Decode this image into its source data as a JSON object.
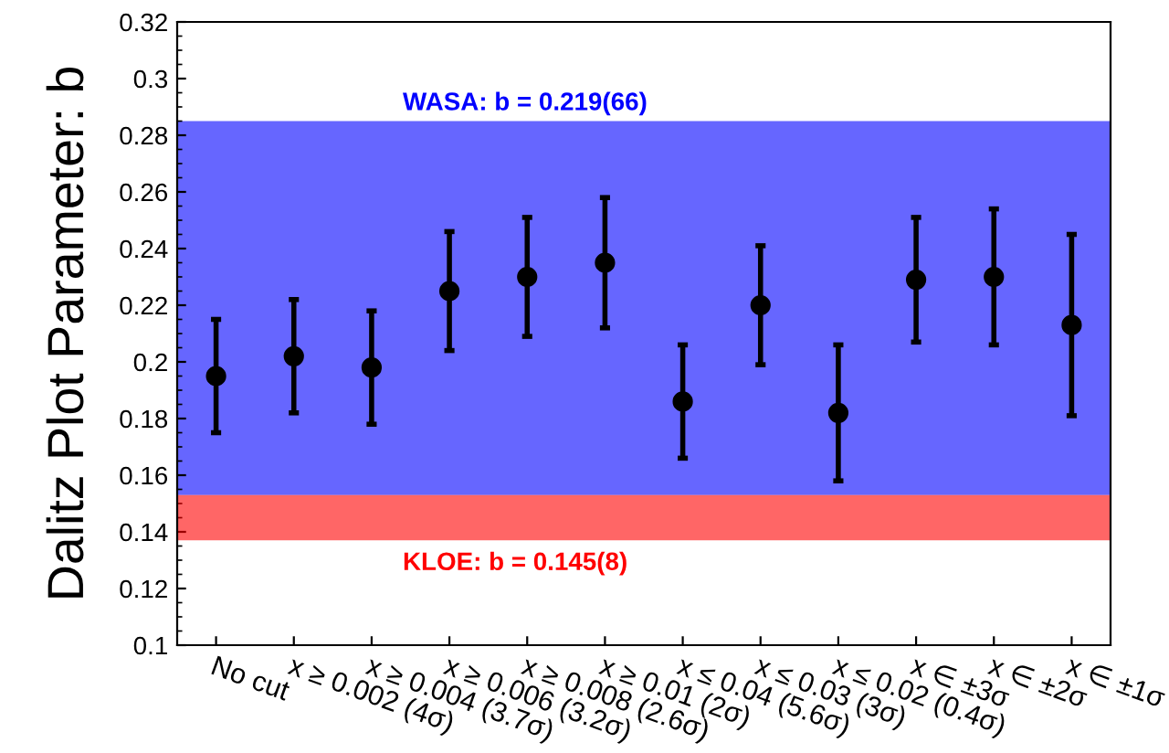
{
  "chart_data": {
    "type": "scatter",
    "ylabel": "Dalitz Plot Parameter: b",
    "categories": [
      "No cut",
      "x ≥ 0.002 (4σ)",
      "x ≥ 0.004 (3.7σ)",
      "x ≥ 0.006 (3.2σ)",
      "x ≥ 0.008 (2.6σ)",
      "x ≥ 0.01 (2σ)",
      "x ≤ 0.04 (5.6σ)",
      "x ≤ 0.03 (3σ)",
      "x ≤ 0.02 (0.4σ)",
      "x ∈ ±3σ",
      "x ∈ ±2σ",
      "x ∈ ±1σ"
    ],
    "series": [
      {
        "color": "#000000",
        "values": [
          0.195,
          0.202,
          0.198,
          0.225,
          0.23,
          0.235,
          0.186,
          0.22,
          0.182,
          0.229,
          0.23,
          0.213
        ],
        "errors": [
          0.02,
          0.02,
          0.02,
          0.021,
          0.021,
          0.023,
          0.02,
          0.021,
          0.024,
          0.022,
          0.024,
          0.032
        ]
      }
    ],
    "marker": "circle",
    "ylim": [
      0.1,
      0.32
    ],
    "yticks": [
      0.1,
      0.12,
      0.14,
      0.16,
      0.18,
      0.2,
      0.22,
      0.24,
      0.26,
      0.28,
      0.3,
      0.32
    ],
    "bands": [
      {
        "axis": "y",
        "from": 0.153,
        "to": 0.285,
        "label": "WASA: b = 0.219(66)",
        "color": "#0000ff"
      },
      {
        "axis": "y",
        "from": 0.137,
        "to": 0.153,
        "label": "KLOE: b = 0.145(8)",
        "color": "#ff0000"
      }
    ],
    "grid": false,
    "legend": false
  }
}
